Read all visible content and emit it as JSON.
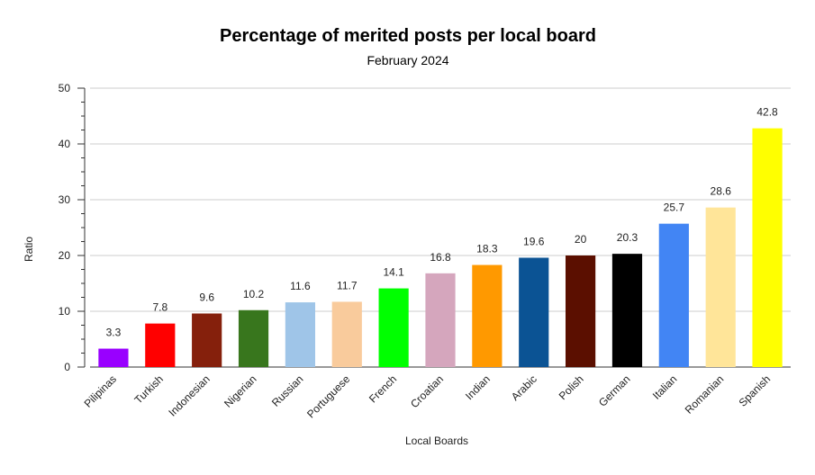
{
  "chart_data": {
    "type": "bar",
    "title": "Percentage of merited posts per local board",
    "subtitle": "February 2024",
    "xlabel": "Local Boards",
    "ylabel": "Ratio",
    "ylim": [
      0,
      50
    ],
    "yticks": [
      0,
      10,
      20,
      30,
      40,
      50
    ],
    "grid": true,
    "legend": "none",
    "categories": [
      "Pilipinas",
      "Turkish",
      "Indonesian",
      "Nigerian",
      "Russian",
      "Portuguese",
      "French",
      "Croatian",
      "Indian",
      "Arabic",
      "Polish",
      "German",
      "Italian",
      "Romanian",
      "Spanish"
    ],
    "values": [
      3.3,
      7.8,
      9.6,
      10.2,
      11.6,
      11.7,
      14.1,
      16.8,
      18.3,
      19.6,
      20,
      20.3,
      25.7,
      28.6,
      42.8
    ],
    "value_labels": [
      "3.3",
      "7.8",
      "9.6",
      "10.2",
      "11.6",
      "11.7",
      "14.1",
      "16.8",
      "18.3",
      "19.6",
      "20",
      "20.3",
      "25.7",
      "28.6",
      "42.8"
    ],
    "colors": [
      "#9900ff",
      "#ff0000",
      "#85200c",
      "#38761d",
      "#9fc5e8",
      "#f9cb9c",
      "#00ff00",
      "#d5a6bd",
      "#ff9900",
      "#0b5394",
      "#5b0f00",
      "#000000",
      "#4285f4",
      "#ffe599",
      "#ffff00"
    ]
  }
}
